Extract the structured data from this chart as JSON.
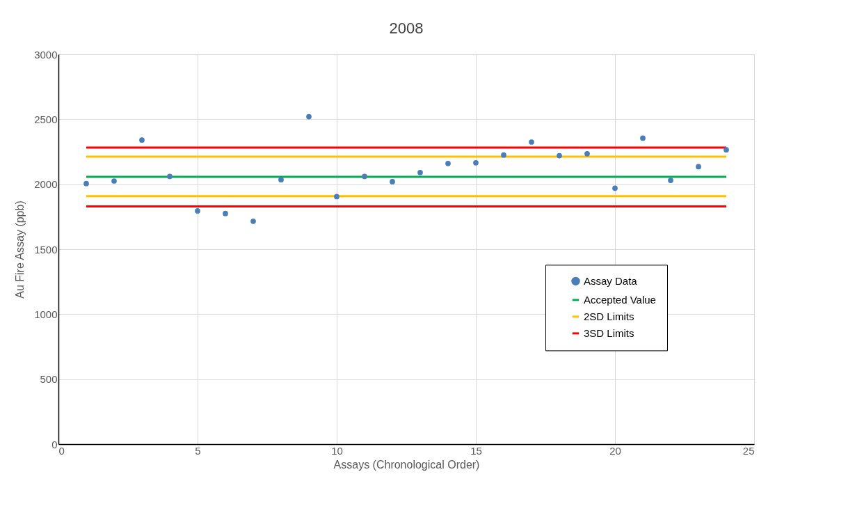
{
  "chart_data": {
    "type": "scatter",
    "title": "2008",
    "xlabel": "Assays (Chronological Order)",
    "ylabel": "Au Fire Assay (ppb)",
    "xlim": [
      0,
      25
    ],
    "xticks": [
      0,
      5,
      10,
      15,
      20,
      25
    ],
    "ylim": [
      0,
      3000
    ],
    "yticks": [
      0,
      500,
      1000,
      1500,
      2000,
      2500,
      3000
    ],
    "grid": true,
    "legend": "right",
    "series": [
      {
        "name": "Assay Data",
        "marker": "circle",
        "color": "#4a7ebb",
        "x": [
          1,
          2,
          3,
          4,
          5,
          6,
          7,
          8,
          9,
          10,
          11,
          12,
          13,
          14,
          15,
          16,
          17,
          18,
          19,
          20,
          21,
          22,
          23,
          24
        ],
        "values": [
          2005,
          2025,
          2340,
          2060,
          1795,
          1775,
          1715,
          2035,
          2520,
          1905,
          2060,
          2020,
          2090,
          2160,
          2165,
          2225,
          2325,
          2220,
          2235,
          1970,
          2355,
          2030,
          2135,
          2265
        ]
      },
      {
        "name": "Accepted Value",
        "type": "line",
        "marker": "none",
        "color": "#00b050",
        "x": [
          1,
          24
        ],
        "values": [
          2057,
          2057
        ]
      },
      {
        "name": "2SD Limits",
        "type": "line",
        "marker": "none",
        "color": "#ffc000",
        "x": [
          1,
          24
        ],
        "values": [
          2213,
          2213
        ]
      },
      {
        "type": "line",
        "marker": "none",
        "color": "#ffc000",
        "x": [
          1,
          24
        ],
        "values": [
          1909,
          1909
        ]
      },
      {
        "name": "3SD Limits",
        "type": "line",
        "marker": "none",
        "color": "#ff0000",
        "x": [
          1,
          24
        ],
        "values": [
          2282,
          2282
        ]
      },
      {
        "type": "line",
        "marker": "none",
        "color": "#ff0000",
        "x": [
          1,
          24
        ],
        "values": [
          1830,
          1830
        ]
      }
    ]
  }
}
